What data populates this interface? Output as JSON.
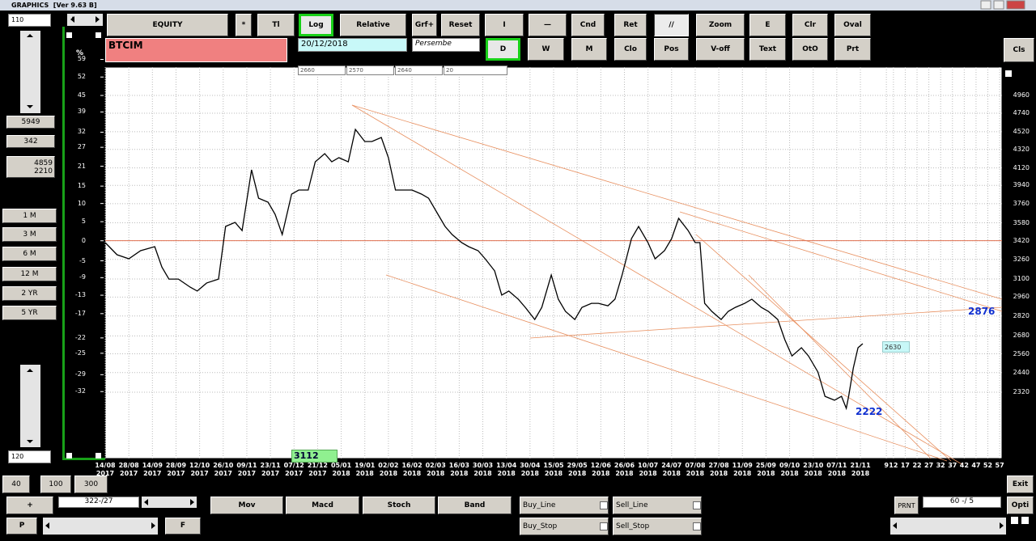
{
  "window_title": "GRAPHICS  [Ver 9.63 B]",
  "toolbar": {
    "row1": [
      "EQUITY",
      "*",
      "Tl",
      "Log",
      "Relative",
      "Grf+",
      "Reset",
      "I",
      "—",
      "Cnd",
      "Ret",
      "//",
      "Zoom",
      "E",
      "Clr",
      "Oval"
    ],
    "row2": [
      "D",
      "W",
      "M",
      "Clo",
      "Pos",
      "V-off",
      "Text",
      "OtO",
      "Prt"
    ]
  },
  "symbol": "BTCIM",
  "date": "20/12/2018",
  "weekday": "Persembe",
  "info_boxes": [
    "2660",
    "2570",
    "2640",
    "20"
  ],
  "left_panel": {
    "top_value": "110",
    "values": [
      "5949",
      "342"
    ],
    "range_box": "4859\n2210",
    "periods": [
      "1 M",
      "3 M",
      "6 M",
      "12 M",
      "2 YR",
      "5 YR"
    ],
    "bottom_value": "120"
  },
  "bottom": {
    "zoom_buttons": [
      "40",
      "100",
      "300"
    ],
    "plus": "+",
    "position": "322-/27",
    "prev": "P",
    "next": "F",
    "indicators": [
      "Mov",
      "Macd",
      "Stoch",
      "Band"
    ],
    "order_lines": [
      "Buy_Line",
      "Sell_Line",
      "Buy_Stop",
      "Sell_Stop"
    ],
    "print": "PRNT",
    "ratio": "60 -/ 5",
    "exit": "Exit",
    "options": "Opti",
    "close": "Cls"
  },
  "chart_data": {
    "type": "line",
    "color": "#000000",
    "reference_color": "#e07050",
    "reference_line": 3420,
    "log_scale": true,
    "grid": true,
    "y2_label": "%",
    "x": [
      0,
      5,
      10,
      15,
      21,
      24,
      27,
      31,
      36,
      39,
      43,
      48,
      51,
      55,
      58,
      62,
      65,
      69,
      72,
      75,
      79,
      82,
      86,
      89,
      93,
      96,
      99,
      103,
      106,
      110,
      113,
      117,
      120,
      123,
      127,
      130,
      134,
      137,
      141,
      144,
      147,
      151,
      154,
      158,
      161,
      165,
      168,
      171,
      175,
      178,
      182,
      185,
      189,
      192,
      195,
      199,
      202,
      206,
      209,
      213,
      216,
      219,
      223,
      226,
      230,
      233,
      237,
      240,
      243,
      247,
      250,
      252,
      254,
      257,
      261,
      264,
      267,
      271,
      274,
      278,
      281,
      285,
      288,
      291,
      295,
      298,
      302,
      305,
      309,
      312,
      314,
      315,
      317,
      319,
      321
    ],
    "values": [
      3403,
      3299,
      3265,
      3333,
      3368,
      3197,
      3100,
      3100,
      3036,
      3006,
      3069,
      3100,
      3547,
      3584,
      3510,
      4100,
      3813,
      3774,
      3659,
      3474,
      3853,
      3893,
      3893,
      4185,
      4273,
      4185,
      4229,
      4185,
      4547,
      4408,
      4408,
      4454,
      4229,
      3893,
      3893,
      3893,
      3853,
      3813,
      3659,
      3547,
      3474,
      3403,
      3368,
      3333,
      3265,
      3166,
      2975,
      3006,
      2944,
      2883,
      2795,
      2883,
      3132,
      2944,
      2854,
      2795,
      2883,
      2913,
      2913,
      2895,
      2944,
      3132,
      3438,
      3547,
      3403,
      3265,
      3333,
      3438,
      3621,
      3510,
      3403,
      3403,
      2913,
      2854,
      2795,
      2854,
      2883,
      2913,
      2944,
      2883,
      2854,
      2795,
      2654,
      2546,
      2600,
      2546,
      2443,
      2296,
      2273,
      2296,
      2226,
      2296,
      2469,
      2600,
      2627
    ],
    "xlim": [
      0,
      380
    ],
    "xticks": [
      {
        "value": 0,
        "label": "14/08\n2017"
      },
      {
        "value": 10,
        "label": "28/08\n2017"
      },
      {
        "value": 20,
        "label": "14/09\n2017"
      },
      {
        "value": 30,
        "label": "28/09\n2017"
      },
      {
        "value": 40,
        "label": "12/10\n2017"
      },
      {
        "value": 50,
        "label": "26/10\n2017"
      },
      {
        "value": 60,
        "label": "09/11\n2017"
      },
      {
        "value": 70,
        "label": "23/11\n2017"
      },
      {
        "value": 80,
        "label": "07/12\n2017"
      },
      {
        "value": 90,
        "label": "21/12\n2017"
      },
      {
        "value": 100,
        "label": "05/01\n2018"
      },
      {
        "value": 110,
        "label": "19/01\n2018"
      },
      {
        "value": 120,
        "label": "02/02\n2018"
      },
      {
        "value": 130,
        "label": "16/02\n2018"
      },
      {
        "value": 140,
        "label": "02/03\n2018"
      },
      {
        "value": 150,
        "label": "16/03\n2018"
      },
      {
        "value": 160,
        "label": "30/03\n2018"
      },
      {
        "value": 170,
        "label": "13/04\n2018"
      },
      {
        "value": 180,
        "label": "30/04\n2018"
      },
      {
        "value": 190,
        "label": "15/05\n2018"
      },
      {
        "value": 200,
        "label": "29/05\n2018"
      },
      {
        "value": 210,
        "label": "12/06\n2018"
      },
      {
        "value": 220,
        "label": "26/06\n2018"
      },
      {
        "value": 230,
        "label": "10/07\n2018"
      },
      {
        "value": 240,
        "label": "24/07\n2018"
      },
      {
        "value": 250,
        "label": "07/08\n2018"
      },
      {
        "value": 260,
        "label": "27/08\n2018"
      },
      {
        "value": 270,
        "label": "11/09\n2018"
      },
      {
        "value": 280,
        "label": "25/09\n2018"
      },
      {
        "value": 290,
        "label": "09/10\n2018"
      },
      {
        "value": 300,
        "label": "23/10\n2018"
      },
      {
        "value": 310,
        "label": "07/11\n2018"
      },
      {
        "value": 320,
        "label": "21/11\n2018"
      },
      {
        "value": 331,
        "label": "9"
      },
      {
        "value": 334,
        "label": "12"
      },
      {
        "value": 339,
        "label": "17"
      },
      {
        "value": 344,
        "label": "22"
      },
      {
        "value": 349,
        "label": "27"
      },
      {
        "value": 354,
        "label": "32"
      },
      {
        "value": 359,
        "label": "37"
      },
      {
        "value": 364,
        "label": "42"
      },
      {
        "value": 369,
        "label": "47"
      },
      {
        "value": 374,
        "label": "52"
      },
      {
        "value": 379,
        "label": "57"
      }
    ],
    "ylim": [
      1958,
      5333
    ],
    "yticks": [
      4960,
      4740,
      4520,
      4320,
      4120,
      3940,
      3760,
      3580,
      3420,
      3260,
      3100,
      2960,
      2820,
      2680,
      2560,
      2440,
      2320
    ],
    "y2lim": [
      -42.7,
      55.9
    ],
    "y2ticks": [
      59,
      52,
      45,
      39,
      32,
      27,
      21,
      15,
      10,
      5,
      0,
      -5,
      -9,
      -13,
      -17,
      -22,
      -25,
      -29,
      -32
    ],
    "annotations": [
      "3112",
      "2876",
      "2222",
      "2630"
    ]
  }
}
